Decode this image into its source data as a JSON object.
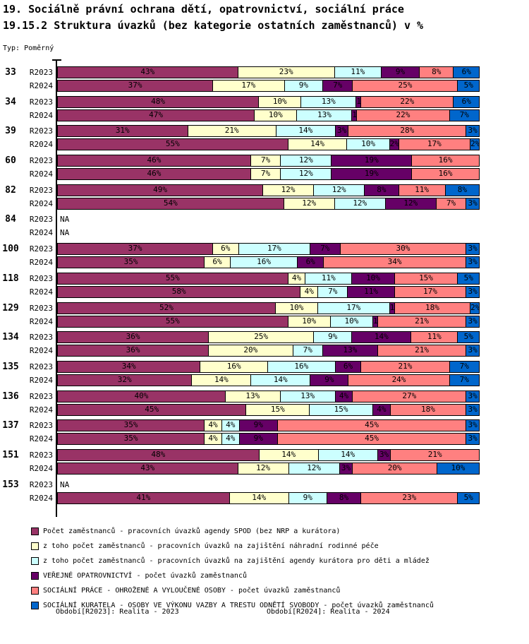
{
  "header": {
    "title_line1": "19. Sociálně právní ochrana dětí, opatrovnictví, sociální práce",
    "title_line2": "19.15.2 Struktura úvazků (bez kategorie ostatních zaměstnanců) v %",
    "type_label": "Typ: Poměrný"
  },
  "na_label": "NA",
  "colors": {
    "background": "#FFFFFF",
    "axis": "#000000",
    "series": [
      "#993366",
      "#FFFFCC",
      "#CCFFFF",
      "#660066",
      "#FF8080",
      "#0066CC"
    ]
  },
  "legend": {
    "items": [
      {
        "label": "Počet zaměstnanců - pracovních úvazků agendy SPOD (bez NRP a kurátora)",
        "color": "#993366"
      },
      {
        "label": "z toho počet zaměstnanců - pracovních úvazků na zajištění náhradní rodinné péče",
        "color": "#FFFFCC"
      },
      {
        "label": "z toho počet zaměstnanců - pracovních úvazků na zajištění agendy kurátora pro děti a mládež",
        "color": "#CCFFFF"
      },
      {
        "label": "VEŘEJNÉ OPATROVNICTVÍ - počet úvazků zaměstnanců",
        "color": "#660066"
      },
      {
        "label": "SOCIÁLNÍ PRÁCE - OHROŽENÉ A VYLOUČENÉ OSOBY - počet úvazků zaměstnanců",
        "color": "#FF8080"
      },
      {
        "label": "SOCIÁLNÍ KURATELA - OSOBY VE VÝKONU VAZBY A TRESTU ODNĚTÍ SVOBODY - počet úvazků zaměstnanců",
        "color": "#0066CC"
      }
    ]
  },
  "footer": {
    "left": "Období[R2023]: Realita - 2023",
    "right": "Období[R2024]: Realita - 2024"
  },
  "chart_data": {
    "type": "bar",
    "stacked": true,
    "orientation": "horizontal",
    "unit": "%",
    "xlim": [
      0,
      100
    ],
    "grid": false,
    "legend_position": "bottom",
    "series_names": [
      "Počet zaměstnanců - pracovních úvazků agendy SPOD (bez NRP a kurátora)",
      "z toho počet zaměstnanců - pracovních úvazků na zajištění náhradní rodinné péče",
      "z toho počet zaměstnanců - pracovních úvazků na zajištění agendy kurátora pro děti a mládež",
      "VEŘEJNÉ OPATROVNICTVÍ - počet úvazků zaměstnanců",
      "SOCIÁLNÍ PRÁCE - OHROŽENÉ A VYLOUČENÉ OSOBY - počet úvazků zaměstnanců",
      "SOCIÁLNÍ KURATELA - OSOBY VE VÝKONU VAZBY A TRESTU ODNĚTÍ SVOBODY - počet úvazků zaměstnanců"
    ],
    "groups": [
      {
        "category": "33",
        "rows": [
          {
            "period": "R2023",
            "values": [
              43,
              23,
              11,
              9,
              8,
              6
            ]
          },
          {
            "period": "R2024",
            "values": [
              37,
              17,
              9,
              7,
              25,
              5
            ]
          }
        ]
      },
      {
        "category": "34",
        "rows": [
          {
            "period": "R2023",
            "values": [
              48,
              10,
              13,
              1,
              22,
              6
            ]
          },
          {
            "period": "R2024",
            "values": [
              47,
              10,
              13,
              1,
              22,
              7
            ]
          }
        ]
      },
      {
        "category": "39",
        "rows": [
          {
            "period": "R2023",
            "values": [
              31,
              21,
              14,
              3,
              28,
              3
            ]
          },
          {
            "period": "R2024",
            "values": [
              55,
              14,
              10,
              2,
              17,
              2
            ]
          }
        ]
      },
      {
        "category": "60",
        "rows": [
          {
            "period": "R2023",
            "values": [
              46,
              7,
              12,
              19,
              16,
              0
            ]
          },
          {
            "period": "R2024",
            "values": [
              46,
              7,
              12,
              19,
              16,
              0
            ]
          }
        ]
      },
      {
        "category": "82",
        "rows": [
          {
            "period": "R2023",
            "values": [
              49,
              12,
              12,
              8,
              11,
              8
            ]
          },
          {
            "period": "R2024",
            "values": [
              54,
              12,
              12,
              12,
              7,
              3
            ]
          }
        ]
      },
      {
        "category": "84",
        "rows": [
          {
            "period": "R2023",
            "values": null
          },
          {
            "period": "R2024",
            "values": null
          }
        ]
      },
      {
        "category": "100",
        "rows": [
          {
            "period": "R2023",
            "values": [
              37,
              6,
              17,
              7,
              30,
              3
            ]
          },
          {
            "period": "R2024",
            "values": [
              35,
              6,
              16,
              6,
              34,
              3
            ]
          }
        ]
      },
      {
        "category": "118",
        "rows": [
          {
            "period": "R2023",
            "values": [
              55,
              4,
              11,
              10,
              15,
              5
            ]
          },
          {
            "period": "R2024",
            "values": [
              58,
              4,
              7,
              11,
              17,
              3
            ]
          }
        ]
      },
      {
        "category": "129",
        "rows": [
          {
            "period": "R2023",
            "values": [
              52,
              10,
              17,
              1,
              18,
              2
            ]
          },
          {
            "period": "R2024",
            "values": [
              55,
              10,
              10,
              1,
              21,
              3
            ]
          }
        ]
      },
      {
        "category": "134",
        "rows": [
          {
            "period": "R2023",
            "values": [
              36,
              25,
              9,
              14,
              11,
              5
            ]
          },
          {
            "period": "R2024",
            "values": [
              36,
              20,
              7,
              13,
              21,
              3
            ]
          }
        ]
      },
      {
        "category": "135",
        "rows": [
          {
            "period": "R2023",
            "values": [
              34,
              16,
              16,
              6,
              21,
              7
            ]
          },
          {
            "period": "R2024",
            "values": [
              32,
              14,
              14,
              9,
              24,
              7
            ]
          }
        ]
      },
      {
        "category": "136",
        "rows": [
          {
            "period": "R2023",
            "values": [
              40,
              13,
              13,
              4,
              27,
              3
            ]
          },
          {
            "period": "R2024",
            "values": [
              45,
              15,
              15,
              4,
              18,
              3
            ]
          }
        ]
      },
      {
        "category": "137",
        "rows": [
          {
            "period": "R2023",
            "values": [
              35,
              4,
              4,
              9,
              45,
              3
            ]
          },
          {
            "period": "R2024",
            "values": [
              35,
              4,
              4,
              9,
              45,
              3
            ]
          }
        ]
      },
      {
        "category": "151",
        "rows": [
          {
            "period": "R2023",
            "values": [
              48,
              14,
              14,
              3,
              21,
              0
            ]
          },
          {
            "period": "R2024",
            "values": [
              43,
              12,
              12,
              3,
              20,
              10
            ]
          }
        ]
      },
      {
        "category": "153",
        "rows": [
          {
            "period": "R2023",
            "values": null
          },
          {
            "period": "R2024",
            "values": [
              41,
              14,
              9,
              8,
              23,
              5
            ]
          }
        ]
      }
    ]
  }
}
